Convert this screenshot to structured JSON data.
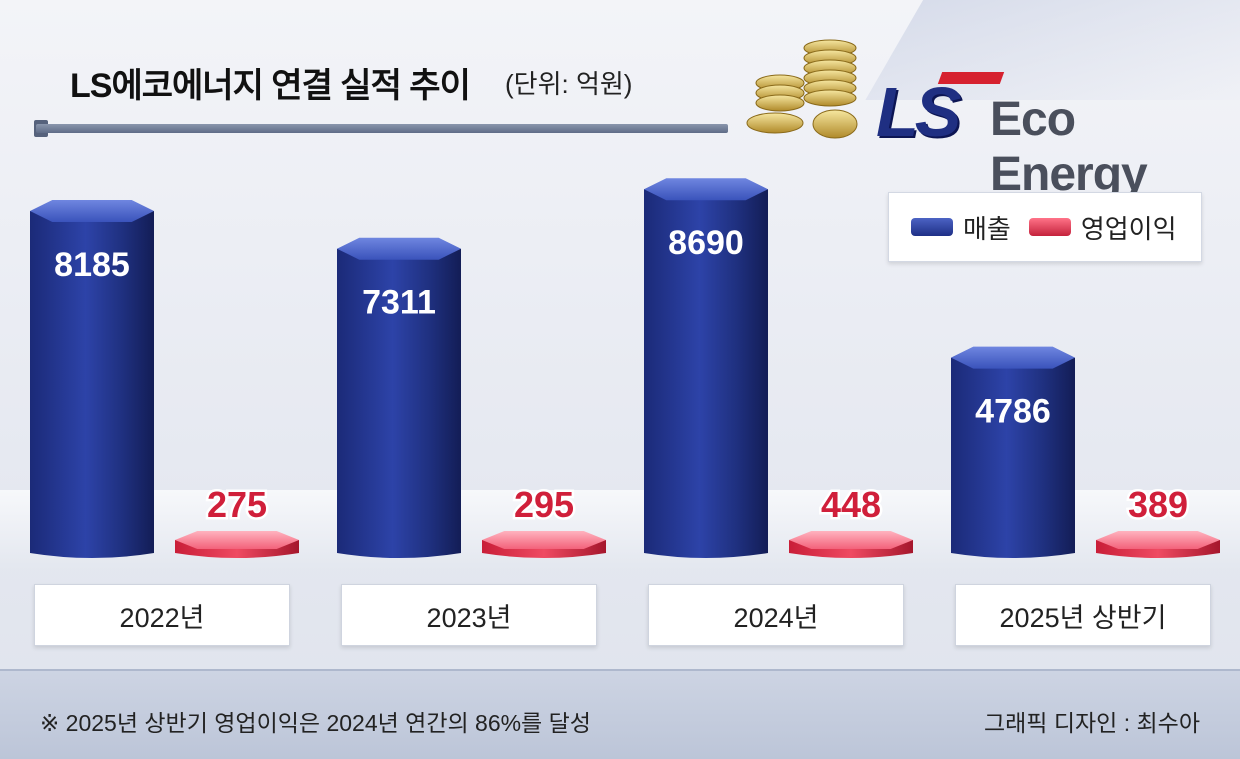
{
  "title": "LS에코에너지 연결 실적 추이",
  "unit": "(단위: 억원)",
  "logo": {
    "brand": "LS",
    "name": "Eco Energy",
    "brand_color": "#1f2f82",
    "accent_color": "#d6212f"
  },
  "legend": {
    "revenue": "매출",
    "operating_profit": "영업이익"
  },
  "colors": {
    "revenue": "#23358f",
    "operating_profit": "#e2374e",
    "revenue_label": "#ffffff",
    "profit_label": "#d01f3a"
  },
  "chart_data": {
    "type": "bar",
    "categories": [
      "2022년",
      "2023년",
      "2024년",
      "2025년 상반기"
    ],
    "series": [
      {
        "name": "매출",
        "values": [
          8185,
          7311,
          8690,
          4786
        ]
      },
      {
        "name": "영업이익",
        "values": [
          275,
          295,
          448,
          389
        ]
      }
    ],
    "value_labels": [
      [
        "8185",
        "7311",
        "8690",
        "4786"
      ],
      [
        "275",
        "295",
        "448",
        "389"
      ]
    ],
    "title": "LS에코에너지 연결 실적 추이",
    "xlabel": "",
    "ylabel": "",
    "ylim": [
      0,
      10000
    ],
    "legend_position": "top-right",
    "grid": false
  },
  "footer": {
    "note": "※ 2025년 상반기 영업이익은 2024년 연간의 86%를 달성",
    "credit": "그래픽 디자인 : 최수아"
  }
}
